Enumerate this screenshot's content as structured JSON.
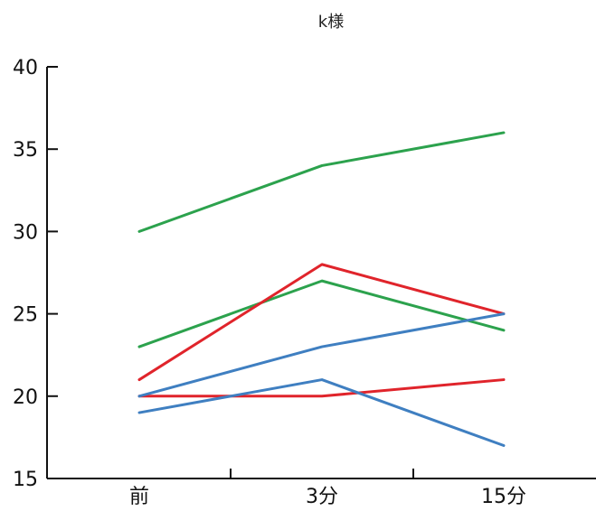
{
  "chart_data": {
    "type": "line",
    "title": "k様",
    "xlabel": "",
    "ylabel": "",
    "categories": [
      "前",
      "3分",
      "15分"
    ],
    "ylim": [
      15,
      40
    ],
    "yticks": [
      15,
      20,
      25,
      30,
      35,
      40
    ],
    "grid": false,
    "legend": "none",
    "series": [
      {
        "color": "#2ca24d",
        "values": [
          30,
          34,
          36
        ]
      },
      {
        "color": "#2ca24d",
        "values": [
          23,
          27,
          24
        ]
      },
      {
        "color": "#e0242b",
        "values": [
          21,
          28,
          25
        ]
      },
      {
        "color": "#e0242b",
        "values": [
          20,
          20,
          21
        ]
      },
      {
        "color": "#3f7fc1",
        "values": [
          20,
          23,
          25
        ]
      },
      {
        "color": "#3f7fc1",
        "values": [
          19,
          21,
          17
        ]
      }
    ]
  }
}
